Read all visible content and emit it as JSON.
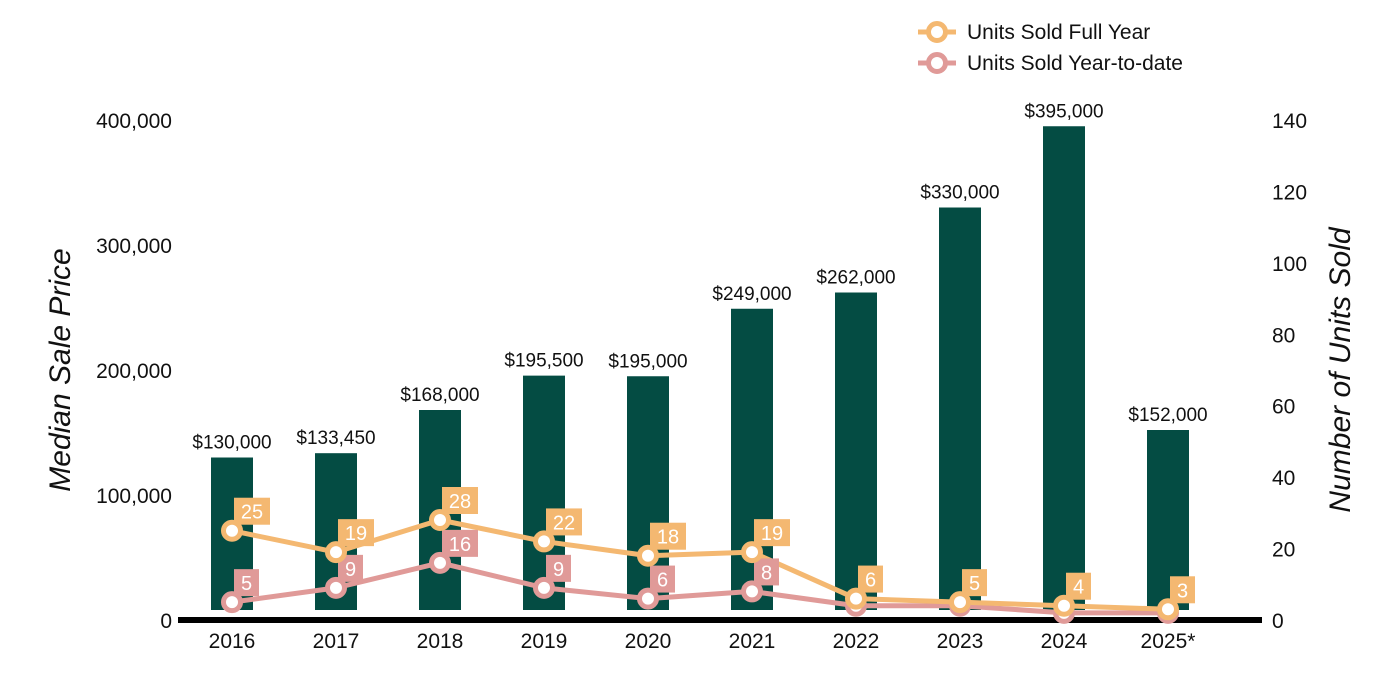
{
  "chart_data": {
    "type": "bar+line",
    "categories": [
      "2016",
      "2017",
      "2018",
      "2019",
      "2020",
      "2021",
      "2022",
      "2023",
      "2024",
      "2025*"
    ],
    "bar_series": {
      "name": "Median Sale Price",
      "values": [
        130000,
        133450,
        168000,
        195500,
        195000,
        249000,
        262000,
        330000,
        395000,
        152000
      ],
      "labels": [
        "$130,000",
        "$133,450",
        "$168,000",
        "$195,500",
        "$195,000",
        "$249,000",
        "$262,000",
        "$330,000",
        "$395,000",
        "$152,000"
      ],
      "color": "#044c43"
    },
    "line_series": [
      {
        "name": "Units Sold Full Year",
        "values": [
          25,
          19,
          28,
          22,
          18,
          19,
          6,
          5,
          4,
          3
        ],
        "labels": [
          "25",
          "19",
          "28",
          "22",
          "18",
          "19",
          "6",
          "5",
          "4",
          "3"
        ],
        "color": "#f4b871"
      },
      {
        "name": "Units Sold Year-to-date",
        "values": [
          5,
          9,
          16,
          9,
          6,
          8,
          4,
          4,
          2,
          2
        ],
        "labels": [
          "5",
          "9",
          "16",
          "9",
          "6",
          "8",
          "",
          "",
          "",
          ""
        ],
        "color": "#e09a98"
      }
    ],
    "ylabel_left": "Median Sale Price",
    "ylabel_right": "Number of Units Sold",
    "ylim_left": [
      0,
      400000
    ],
    "ylim_right": [
      0,
      140
    ],
    "yticks_left": [
      "0",
      "100,000",
      "200,000",
      "300,000",
      "400,000"
    ],
    "yticks_left_values": [
      0,
      100000,
      200000,
      300000,
      400000
    ],
    "yticks_right": [
      "0",
      "20",
      "40",
      "60",
      "80",
      "100",
      "120",
      "140"
    ],
    "yticks_right_values": [
      0,
      20,
      40,
      60,
      80,
      100,
      120,
      140
    ],
    "legend_position": "top-right",
    "grid": false
  }
}
